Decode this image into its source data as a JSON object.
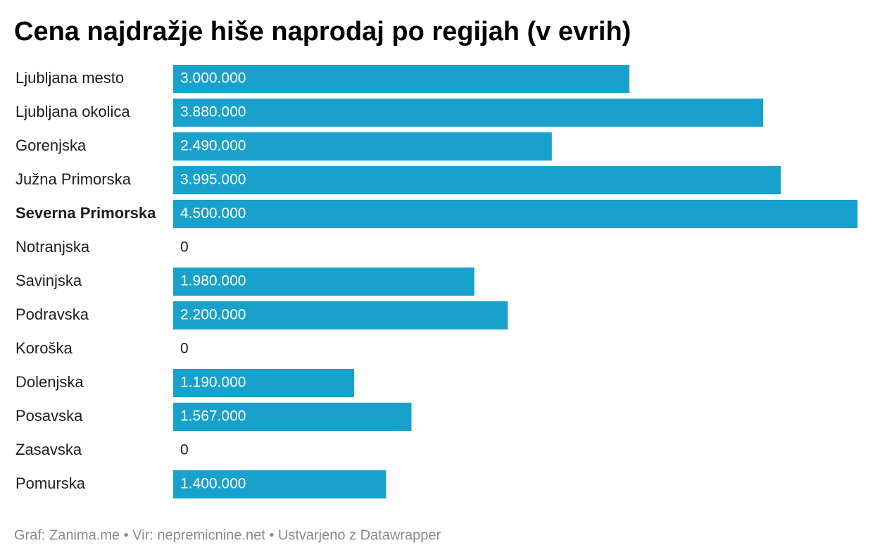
{
  "chart_data": {
    "type": "bar",
    "orientation": "horizontal",
    "title": "Cena najdražje hiše naprodaj po regijah (v evrih)",
    "categories": [
      "Ljubljana mesto",
      "Ljubljana okolica",
      "Gorenjska",
      "Južna Primorska",
      "Severna Primorska",
      "Notranjska",
      "Savinjska",
      "Podravska",
      "Koroška",
      "Dolenjska",
      "Posavska",
      "Zasavska",
      "Pomurska"
    ],
    "values": [
      3000000,
      3880000,
      2490000,
      3995000,
      4500000,
      0,
      1980000,
      2200000,
      0,
      1190000,
      1567000,
      0,
      1400000
    ],
    "value_labels": [
      "3.000.000",
      "3.880.000",
      "2.490.000",
      "3.995.000",
      "4.500.000",
      "0",
      "1.980.000",
      "2.200.000",
      "0",
      "1.190.000",
      "1.567.000",
      "0",
      "1.400.000"
    ],
    "color": "#18a1cd",
    "xlim": [
      0,
      4500000
    ],
    "highlight": "Severna Primorska",
    "source": "Graf: Zanima.me • Vir: nepremicnine.net • Ustvarjeno z Datawrapper"
  }
}
